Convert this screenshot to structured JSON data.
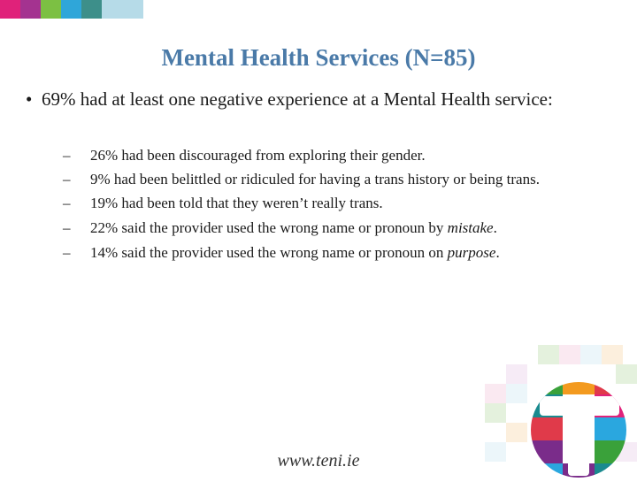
{
  "colors": {
    "title": "#4a7aa8",
    "topbar": [
      "#e0227a",
      "#a43390",
      "#7cc043",
      "#2fa6d9",
      "#3d8f8a",
      "#b6dbe8"
    ],
    "logo_t": "#ffffff",
    "logo_red": "#e03a4a",
    "logo_green": "#3aa13a",
    "logo_orange": "#f39a1f",
    "logo_teal": "#1a8a8f",
    "logo_purple": "#7a2c8a",
    "logo_blue": "#2aa7df"
  },
  "slide": {
    "title": "Mental Health Services (N=85)",
    "bullet_marker": "•",
    "main_bullet": "69% had at least one negative experience at a Mental Health service:",
    "dash": "–",
    "sub_bullets": [
      {
        "text": "26% had been discouraged from exploring their gender."
      },
      {
        "text": "9% had been belittled or ridiculed for having a trans history or being trans."
      },
      {
        "text": "19% had been told that they weren’t really trans."
      },
      {
        "text": "22% said the provider used the wrong name or pronoun by ",
        "em": "mistake",
        "tail": "."
      },
      {
        "text": "14% said the provider used the wrong name or pronoun on ",
        "em": "purpose",
        "tail": "."
      }
    ],
    "footer": "www.teni.ie"
  }
}
